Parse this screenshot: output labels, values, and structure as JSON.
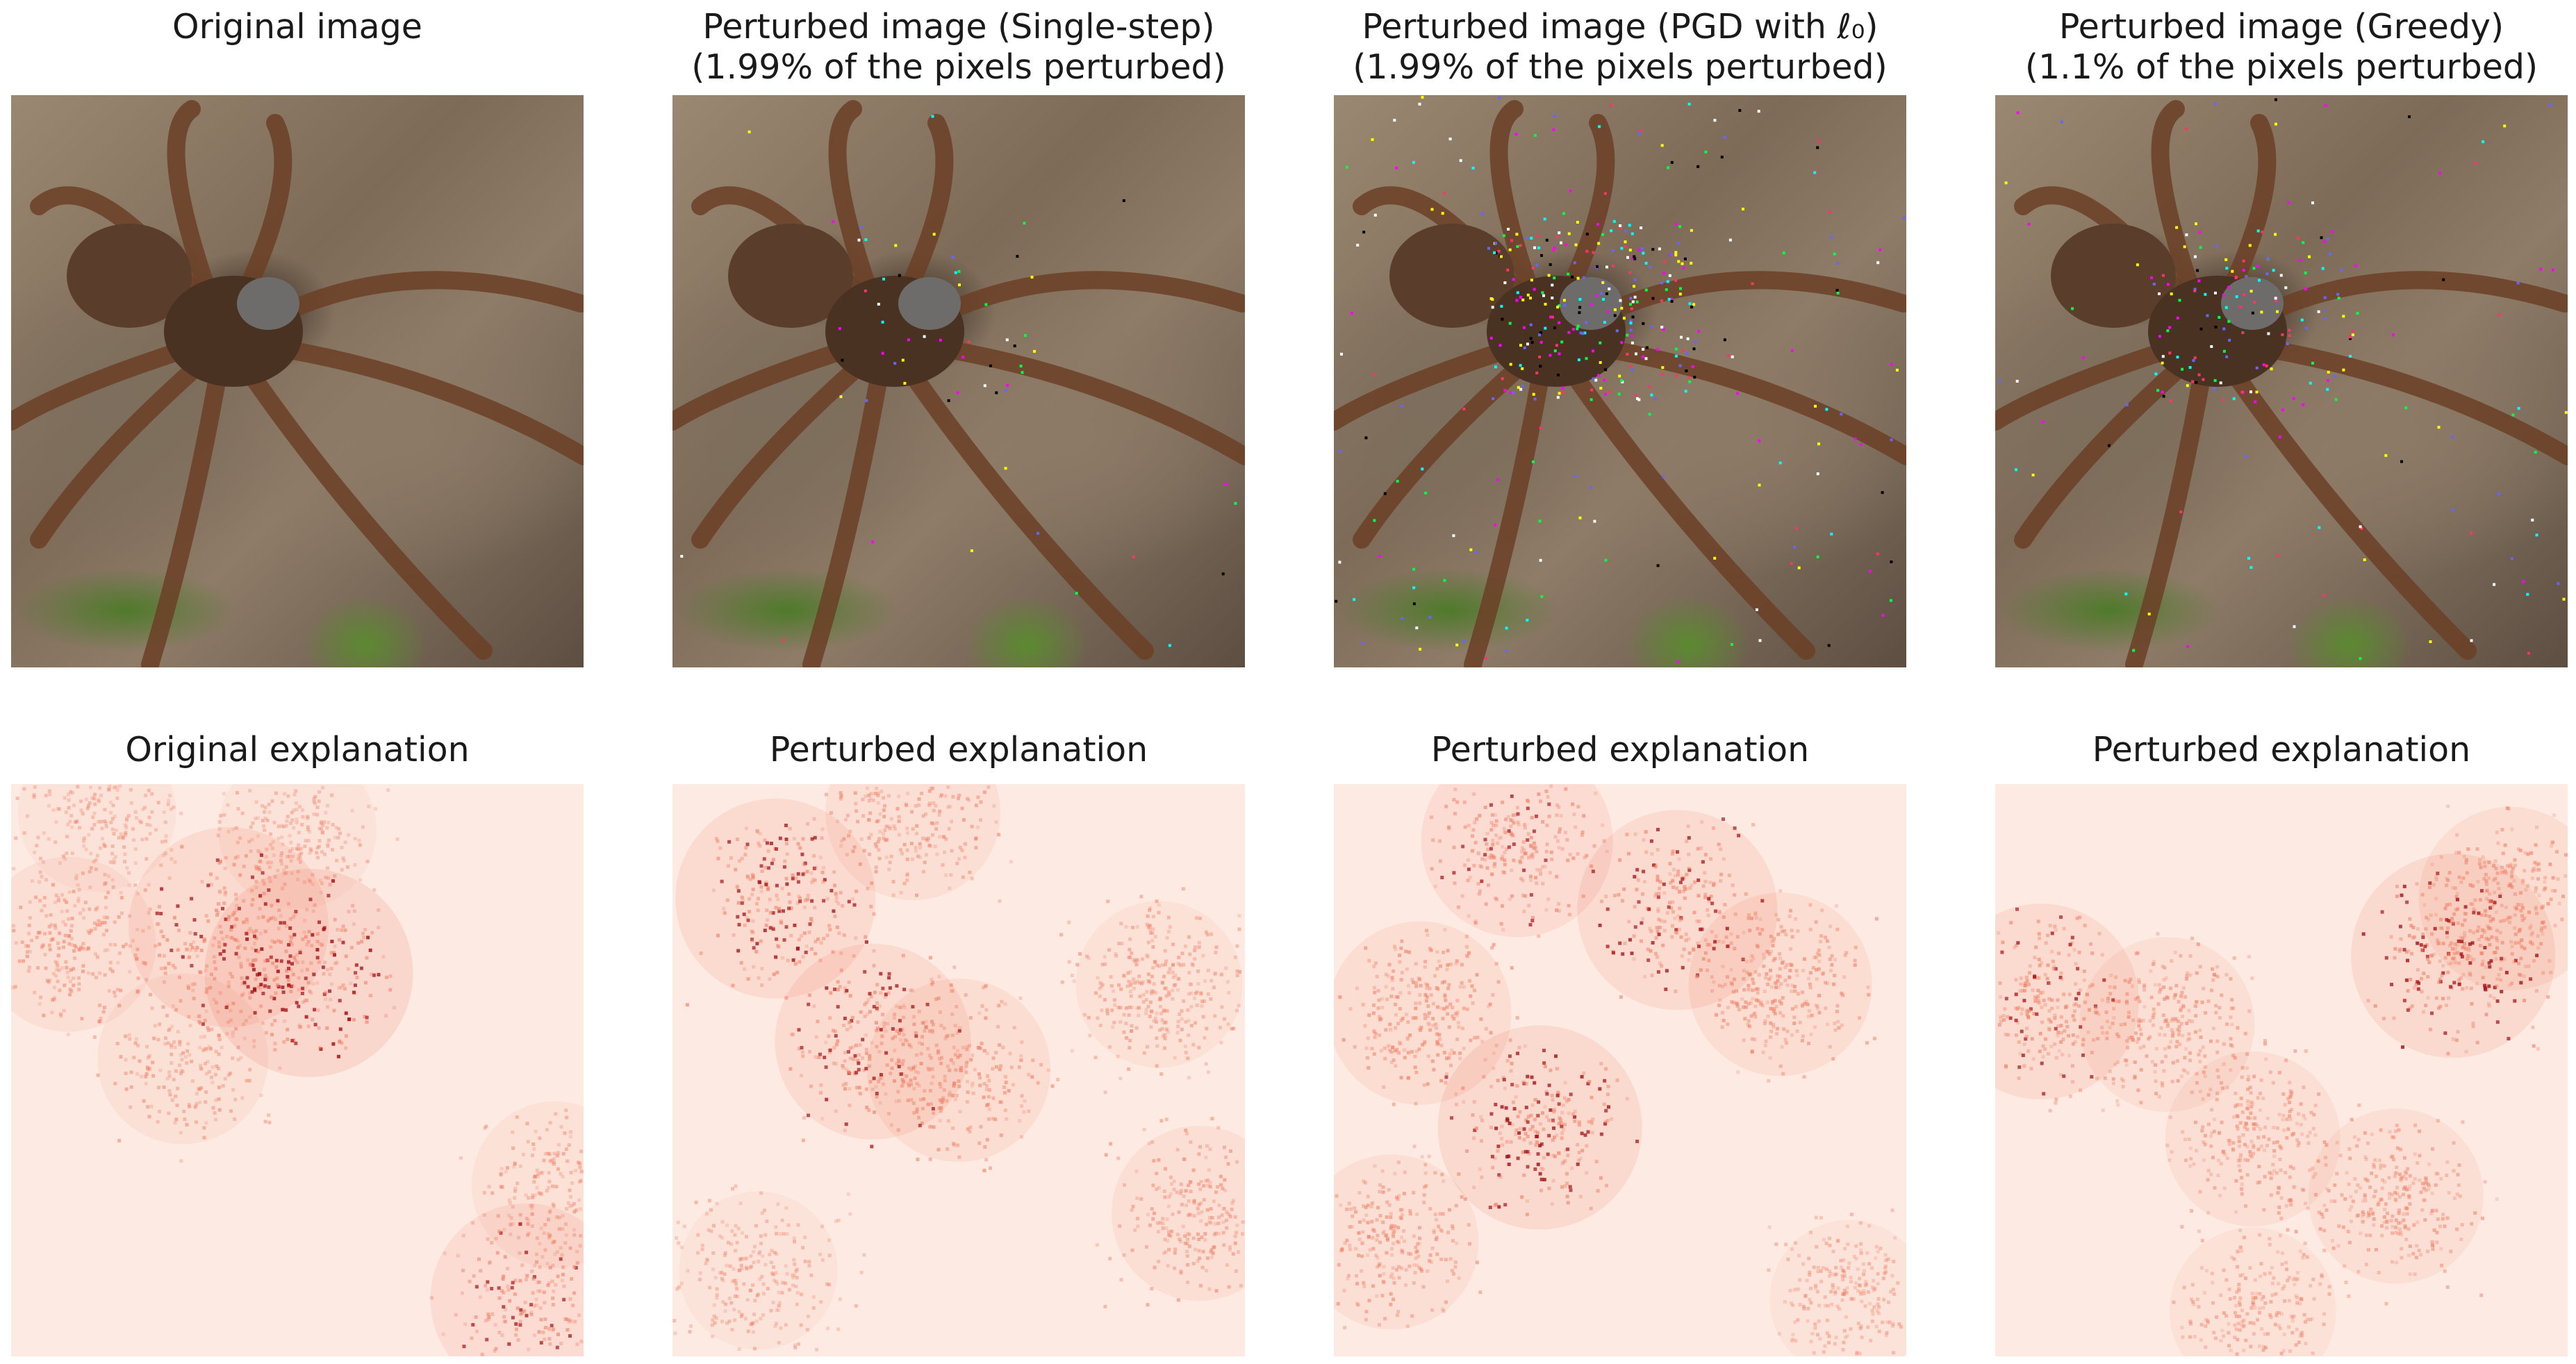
{
  "panels": [
    {
      "title": "Original image",
      "explanation_title": "Original explanation",
      "noise": "none"
    },
    {
      "title": "Perturbed image (Single-step)\n(1.99% of the pixels perturbed)",
      "explanation_title": "Perturbed explanation",
      "noise": "light"
    },
    {
      "title": "Perturbed image (PGD with ℓ₀)\n(1.99% of the pixels perturbed)",
      "explanation_title": "Perturbed explanation",
      "noise": "heavy"
    },
    {
      "title": "Perturbed image (Greedy)\n(1.1% of the pixels perturbed)",
      "explanation_title": "Perturbed explanation",
      "noise": "medium"
    }
  ],
  "colors": {
    "heatmap_low": "#fdebe3",
    "heatmap_mid": "#f08268",
    "heatmap_high": "#a50f15"
  },
  "heatmap_hotspots": [
    [
      [
        0.38,
        0.25,
        0.9
      ],
      [
        0.52,
        0.33,
        1.0
      ],
      [
        0.1,
        0.28,
        0.6
      ],
      [
        0.3,
        0.48,
        0.55
      ],
      [
        0.9,
        0.9,
        0.8
      ],
      [
        0.95,
        0.7,
        0.5
      ],
      [
        0.15,
        0.05,
        0.4
      ],
      [
        0.5,
        0.08,
        0.4
      ]
    ],
    [
      [
        0.18,
        0.2,
        0.9
      ],
      [
        0.35,
        0.45,
        0.85
      ],
      [
        0.5,
        0.5,
        0.7
      ],
      [
        0.42,
        0.05,
        0.6
      ],
      [
        0.85,
        0.35,
        0.5
      ],
      [
        0.92,
        0.75,
        0.6
      ],
      [
        0.15,
        0.85,
        0.4
      ]
    ],
    [
      [
        0.32,
        0.1,
        0.8
      ],
      [
        0.6,
        0.22,
        0.9
      ],
      [
        0.78,
        0.35,
        0.7
      ],
      [
        0.15,
        0.4,
        0.7
      ],
      [
        0.36,
        0.6,
        0.95
      ],
      [
        0.1,
        0.8,
        0.6
      ],
      [
        0.9,
        0.9,
        0.4
      ]
    ],
    [
      [
        0.8,
        0.3,
        0.95
      ],
      [
        0.9,
        0.2,
        0.7
      ],
      [
        0.08,
        0.38,
        0.85
      ],
      [
        0.3,
        0.42,
        0.6
      ],
      [
        0.45,
        0.62,
        0.6
      ],
      [
        0.7,
        0.72,
        0.6
      ],
      [
        0.45,
        0.92,
        0.5
      ]
    ]
  ]
}
